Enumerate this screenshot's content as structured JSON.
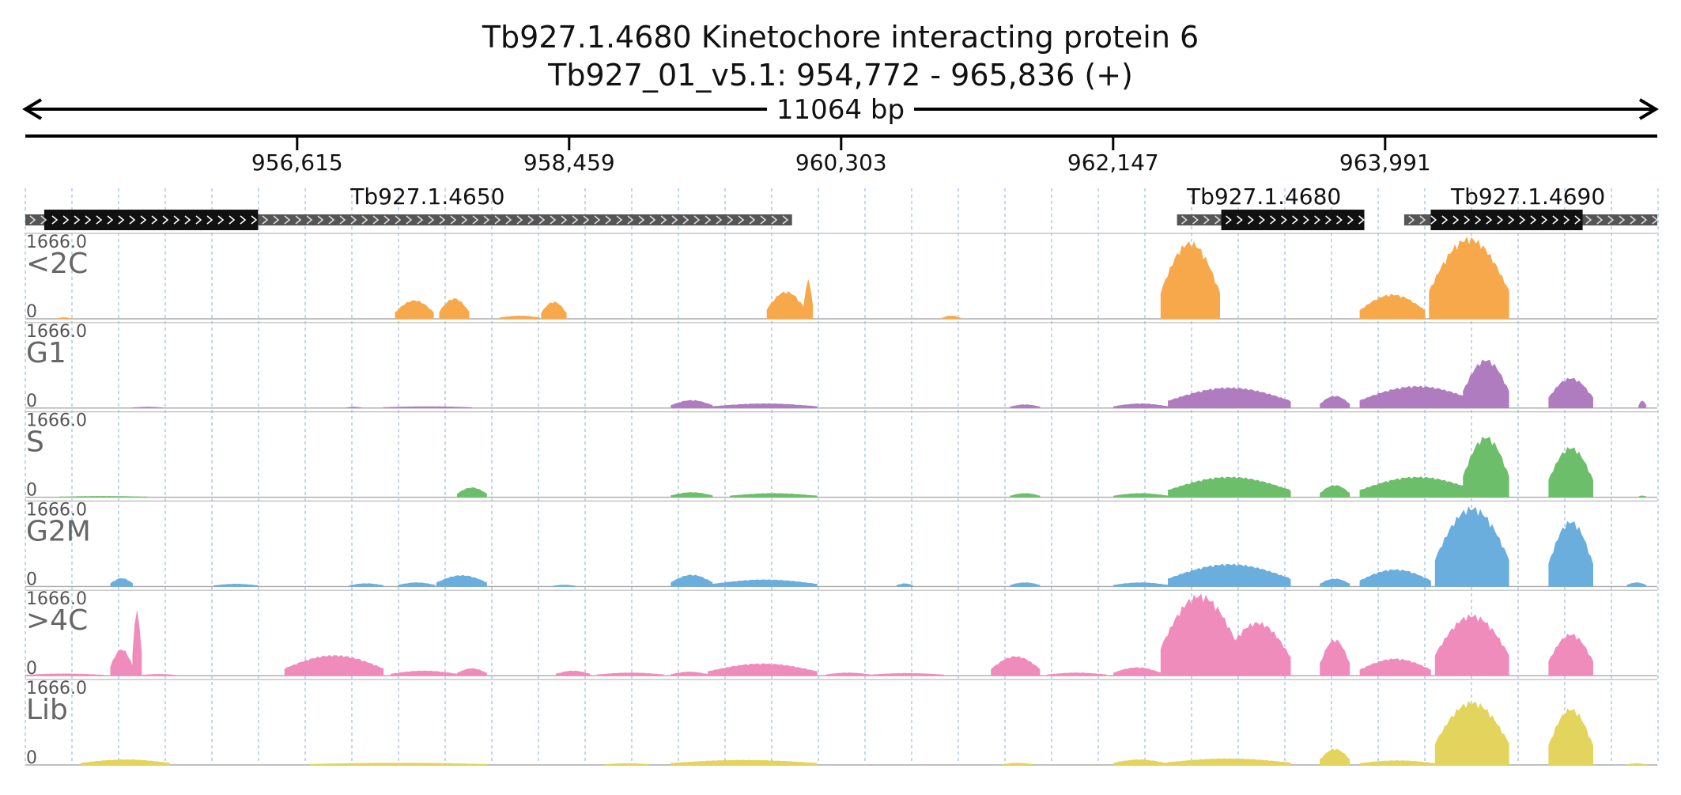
{
  "title": {
    "line1": "Tb927.1.4680  Kinetochore interacting protein 6",
    "line2": "Tb927_01_v5.1: 954,772 - 965,836 (+)"
  },
  "span_label": "11064 bp",
  "chart_data": {
    "type": "area",
    "region": {
      "start": 954772,
      "end": 965836,
      "strand": "+"
    },
    "ticks": [
      {
        "pos": 956615,
        "label": "956,615"
      },
      {
        "pos": 958459,
        "label": "958,459"
      },
      {
        "pos": 960303,
        "label": "960,303"
      },
      {
        "pos": 962147,
        "label": "962,147"
      },
      {
        "pos": 963991,
        "label": "963,991"
      }
    ],
    "genes": [
      {
        "name": "Tb927.1.4650",
        "label_at": 957500,
        "utr": [
          954772,
          959970
        ],
        "cds": [
          954900,
          956350
        ]
      },
      {
        "name": "Tb927.1.4680",
        "label_at": 963170,
        "utr": [
          962580,
          963850
        ],
        "cds": [
          962880,
          963850
        ]
      },
      {
        "name": "Tb927.1.4690",
        "label_at": 964960,
        "utr": [
          964120,
          965836
        ],
        "cds": [
          964300,
          965330
        ]
      }
    ],
    "tracks": [
      {
        "name": "<2C",
        "max_label": "1666.0",
        "min_label": "0",
        "ymax": 1666,
        "color": "#f7a84a",
        "peaks": [
          {
            "s": 954990,
            "e": 955080,
            "h": 25
          },
          {
            "s": 957280,
            "e": 957540,
            "h": 380
          },
          {
            "s": 957580,
            "e": 957780,
            "h": 420
          },
          {
            "s": 957990,
            "e": 958260,
            "h": 60
          },
          {
            "s": 958270,
            "e": 958440,
            "h": 350
          },
          {
            "s": 959800,
            "e": 960060,
            "h": 560
          },
          {
            "s": 960050,
            "e": 960110,
            "h": 790
          },
          {
            "s": 960990,
            "e": 961110,
            "h": 60
          },
          {
            "s": 962470,
            "e": 962870,
            "h": 1580
          },
          {
            "s": 963820,
            "e": 964260,
            "h": 500
          },
          {
            "s": 964290,
            "e": 964830,
            "h": 1666
          }
        ]
      },
      {
        "name": "G1",
        "max_label": "1666.0",
        "min_label": "0",
        "ymax": 1666,
        "color": "#b07cc0",
        "peaks": [
          {
            "s": 955500,
            "e": 955700,
            "h": 20
          },
          {
            "s": 956950,
            "e": 957050,
            "h": 20
          },
          {
            "s": 957200,
            "e": 957800,
            "h": 30
          },
          {
            "s": 959150,
            "e": 959430,
            "h": 160
          },
          {
            "s": 959430,
            "e": 960140,
            "h": 90
          },
          {
            "s": 961450,
            "e": 961650,
            "h": 70
          },
          {
            "s": 962150,
            "e": 962520,
            "h": 90
          },
          {
            "s": 962520,
            "e": 963350,
            "h": 420
          },
          {
            "s": 963550,
            "e": 963750,
            "h": 250
          },
          {
            "s": 963820,
            "e": 964600,
            "h": 450
          },
          {
            "s": 964520,
            "e": 964830,
            "h": 1000
          },
          {
            "s": 965100,
            "e": 965400,
            "h": 620
          },
          {
            "s": 965710,
            "e": 965760,
            "h": 150
          }
        ]
      },
      {
        "name": "S",
        "max_label": "1666.0",
        "min_label": "0",
        "ymax": 1666,
        "color": "#6dbe6b",
        "peaks": [
          {
            "s": 955000,
            "e": 955600,
            "h": 20
          },
          {
            "s": 957700,
            "e": 957900,
            "h": 200
          },
          {
            "s": 959150,
            "e": 959430,
            "h": 100
          },
          {
            "s": 959550,
            "e": 960140,
            "h": 80
          },
          {
            "s": 961450,
            "e": 961650,
            "h": 80
          },
          {
            "s": 962150,
            "e": 962520,
            "h": 80
          },
          {
            "s": 962520,
            "e": 963350,
            "h": 420
          },
          {
            "s": 963550,
            "e": 963750,
            "h": 250
          },
          {
            "s": 963820,
            "e": 964600,
            "h": 420
          },
          {
            "s": 964520,
            "e": 964830,
            "h": 1250
          },
          {
            "s": 965100,
            "e": 965400,
            "h": 1030
          },
          {
            "s": 965710,
            "e": 965760,
            "h": 30
          }
        ]
      },
      {
        "name": "G2M",
        "max_label": "1666.0",
        "min_label": "0",
        "ymax": 1666,
        "color": "#6aaede",
        "peaks": [
          {
            "s": 955350,
            "e": 955500,
            "h": 170
          },
          {
            "s": 956050,
            "e": 956350,
            "h": 50
          },
          {
            "s": 956970,
            "e": 957200,
            "h": 60
          },
          {
            "s": 957300,
            "e": 957550,
            "h": 80
          },
          {
            "s": 957560,
            "e": 957900,
            "h": 230
          },
          {
            "s": 958350,
            "e": 958500,
            "h": 30
          },
          {
            "s": 959150,
            "e": 959430,
            "h": 240
          },
          {
            "s": 959430,
            "e": 960140,
            "h": 140
          },
          {
            "s": 960680,
            "e": 960790,
            "h": 60
          },
          {
            "s": 961450,
            "e": 961650,
            "h": 80
          },
          {
            "s": 962150,
            "e": 962520,
            "h": 80
          },
          {
            "s": 962520,
            "e": 963350,
            "h": 460
          },
          {
            "s": 963550,
            "e": 963750,
            "h": 160
          },
          {
            "s": 963820,
            "e": 964300,
            "h": 350
          },
          {
            "s": 964330,
            "e": 964830,
            "h": 1630
          },
          {
            "s": 965100,
            "e": 965400,
            "h": 1350
          },
          {
            "s": 965630,
            "e": 965760,
            "h": 80
          }
        ]
      },
      {
        "name": ">4C",
        "max_label": "1666.0",
        "min_label": "0",
        "ymax": 1666,
        "color": "#f08cbc",
        "peaks": [
          {
            "s": 954772,
            "e": 955300,
            "h": 40
          },
          {
            "s": 955350,
            "e": 955500,
            "h": 550
          },
          {
            "s": 955500,
            "e": 955560,
            "h": 1330
          },
          {
            "s": 955560,
            "e": 955800,
            "h": 30
          },
          {
            "s": 956530,
            "e": 957200,
            "h": 420
          },
          {
            "s": 957250,
            "e": 957700,
            "h": 100
          },
          {
            "s": 957700,
            "e": 957900,
            "h": 150
          },
          {
            "s": 958370,
            "e": 958600,
            "h": 100
          },
          {
            "s": 958650,
            "e": 959100,
            "h": 60
          },
          {
            "s": 959150,
            "e": 959400,
            "h": 80
          },
          {
            "s": 959400,
            "e": 960140,
            "h": 250
          },
          {
            "s": 960200,
            "e": 960500,
            "h": 60
          },
          {
            "s": 960500,
            "e": 961000,
            "h": 50
          },
          {
            "s": 961320,
            "e": 961650,
            "h": 400
          },
          {
            "s": 961700,
            "e": 962100,
            "h": 60
          },
          {
            "s": 962150,
            "e": 962470,
            "h": 170
          },
          {
            "s": 962470,
            "e": 963000,
            "h": 1666
          },
          {
            "s": 962900,
            "e": 963350,
            "h": 1100
          },
          {
            "s": 963550,
            "e": 963750,
            "h": 750
          },
          {
            "s": 963820,
            "e": 964300,
            "h": 350
          },
          {
            "s": 964330,
            "e": 964830,
            "h": 1250
          },
          {
            "s": 965100,
            "e": 965400,
            "h": 860
          }
        ]
      },
      {
        "name": "Lib",
        "max_label": "1666.0",
        "min_label": "0",
        "ymax": 1666,
        "color": "#e2d45c",
        "peaks": [
          {
            "s": 955150,
            "e": 955750,
            "h": 110
          },
          {
            "s": 956700,
            "e": 957900,
            "h": 40
          },
          {
            "s": 958700,
            "e": 959000,
            "h": 30
          },
          {
            "s": 959150,
            "e": 960140,
            "h": 100
          },
          {
            "s": 961400,
            "e": 961600,
            "h": 40
          },
          {
            "s": 962150,
            "e": 962500,
            "h": 110
          },
          {
            "s": 962500,
            "e": 963350,
            "h": 130
          },
          {
            "s": 963550,
            "e": 963750,
            "h": 330
          },
          {
            "s": 963820,
            "e": 964330,
            "h": 90
          },
          {
            "s": 964330,
            "e": 964830,
            "h": 1300
          },
          {
            "s": 965100,
            "e": 965400,
            "h": 1160
          },
          {
            "s": 965630,
            "e": 965760,
            "h": 30
          }
        ]
      }
    ]
  }
}
